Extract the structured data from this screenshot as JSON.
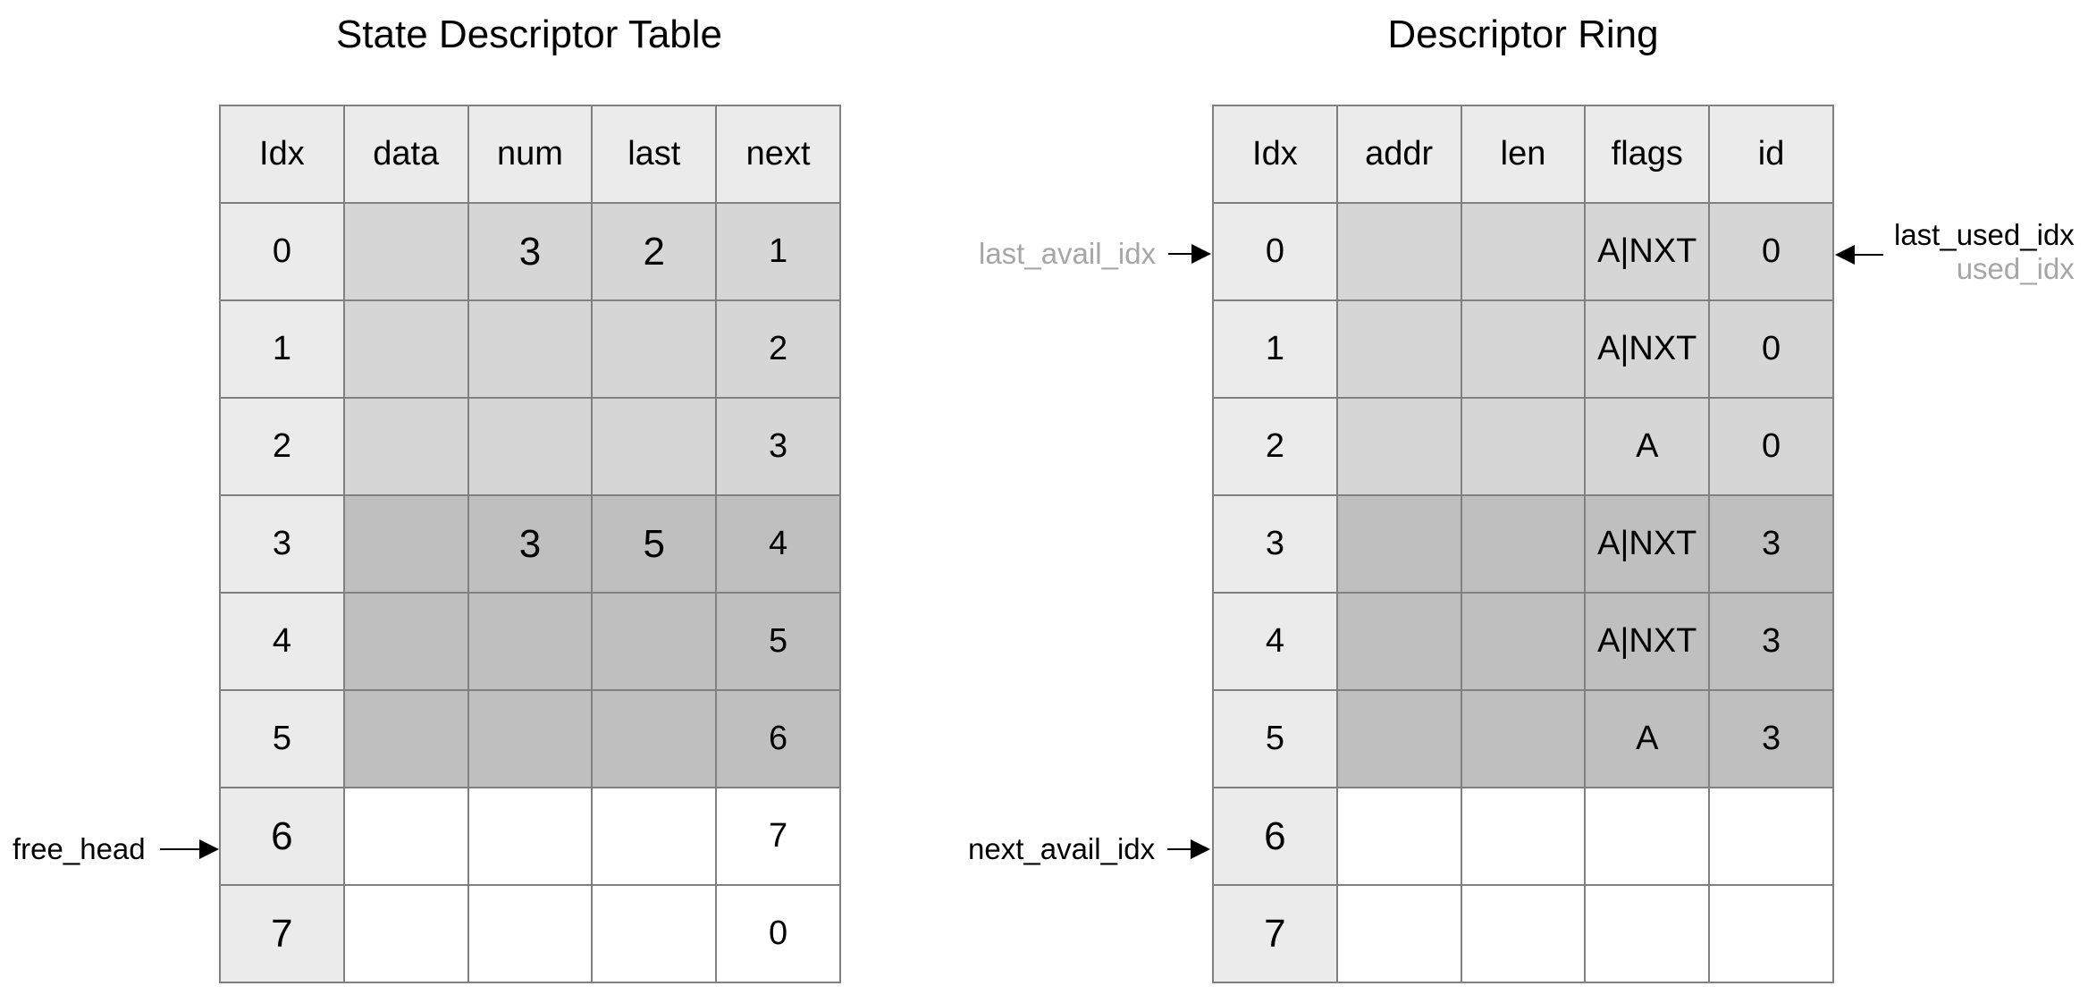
{
  "colors": {
    "header": "#ebebeb",
    "idx": "#ebebeb",
    "light": "#d6d6d6",
    "dark": "#bfbfbf",
    "empty": "#ffffff",
    "border": "#808080",
    "pointer_gray": "#a6a6a6"
  },
  "state_table": {
    "title": "State Descriptor Table",
    "headers": [
      "Idx",
      "data",
      "num",
      "last",
      "next"
    ],
    "rows": [
      {
        "shade": "light",
        "cells": [
          "0",
          "",
          "3",
          "2",
          "1"
        ]
      },
      {
        "shade": "light",
        "cells": [
          "1",
          "",
          "",
          "",
          "2"
        ]
      },
      {
        "shade": "light",
        "cells": [
          "2",
          "",
          "",
          "",
          "3"
        ]
      },
      {
        "shade": "dark",
        "cells": [
          "3",
          "",
          "3",
          "5",
          "4"
        ]
      },
      {
        "shade": "dark",
        "cells": [
          "4",
          "",
          "",
          "",
          "5"
        ]
      },
      {
        "shade": "dark",
        "cells": [
          "5",
          "",
          "",
          "",
          "6"
        ]
      },
      {
        "shade": "empty",
        "cells": [
          "6",
          "",
          "",
          "",
          "7"
        ]
      },
      {
        "shade": "empty",
        "cells": [
          "7",
          "",
          "",
          "",
          "0"
        ]
      }
    ],
    "free_head_label": "free_head"
  },
  "ring": {
    "title": "Descriptor Ring",
    "headers": [
      "Idx",
      "addr",
      "len",
      "flags",
      "id"
    ],
    "rows": [
      {
        "shade": "light",
        "cells": [
          "0",
          "",
          "",
          "A|NXT",
          "0"
        ]
      },
      {
        "shade": "light",
        "cells": [
          "1",
          "",
          "",
          "A|NXT",
          "0"
        ]
      },
      {
        "shade": "light",
        "cells": [
          "2",
          "",
          "",
          "A",
          "0"
        ]
      },
      {
        "shade": "dark",
        "cells": [
          "3",
          "",
          "",
          "A|NXT",
          "3"
        ]
      },
      {
        "shade": "dark",
        "cells": [
          "4",
          "",
          "",
          "A|NXT",
          "3"
        ]
      },
      {
        "shade": "dark",
        "cells": [
          "5",
          "",
          "",
          "A",
          "3"
        ]
      },
      {
        "shade": "empty",
        "cells": [
          "6",
          "",
          "",
          "",
          ""
        ]
      },
      {
        "shade": "empty",
        "cells": [
          "7",
          "",
          "",
          "",
          ""
        ]
      }
    ],
    "last_avail_idx_label": "last_avail_idx",
    "next_avail_idx_label": "next_avail_idx",
    "last_used_idx_label": "last_used_idx",
    "used_idx_label": "used_idx"
  }
}
